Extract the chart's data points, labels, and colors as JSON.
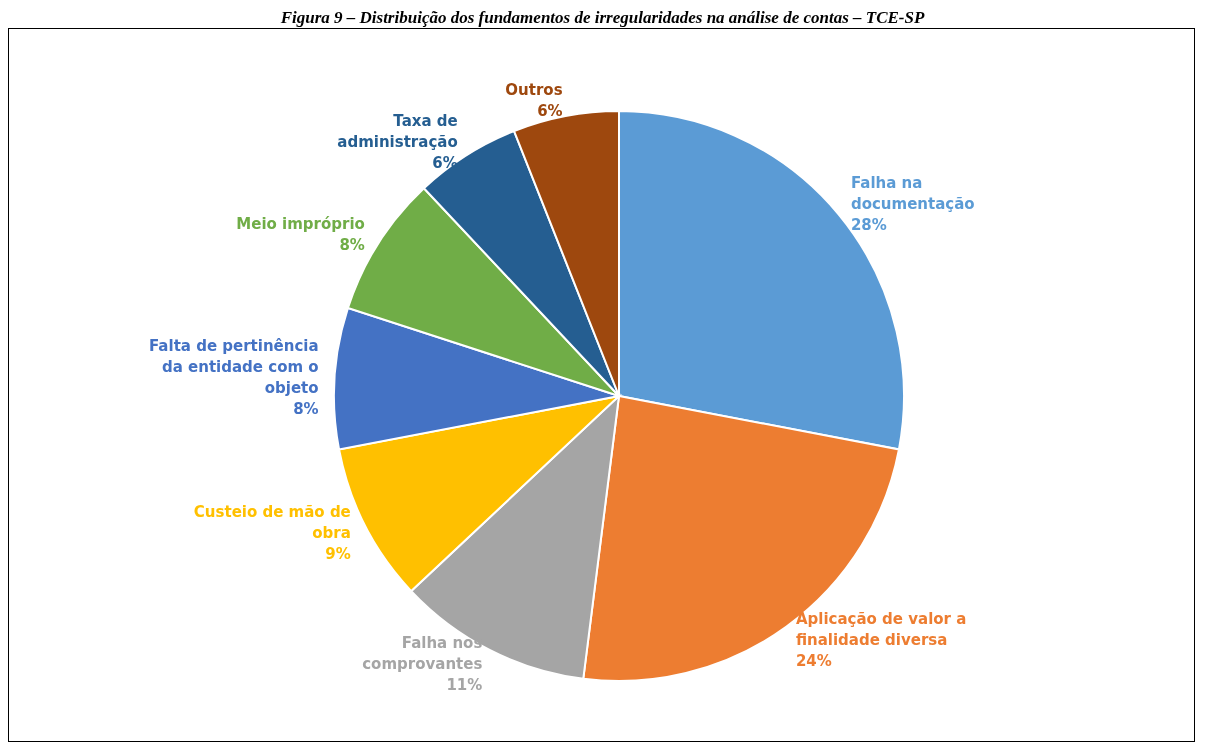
{
  "chart_data": {
    "type": "pie",
    "title": "Figura 9 – Distribuição dos fundamentos de irregularidades na análise de contas – TCE-SP",
    "categories": [
      "Falha na documentação",
      "Aplicação de valor a finalidade diversa",
      "Falha nos comprovantes",
      "Custeio de mão de obra",
      "Falta de pertinência da entidade com o objeto",
      "Meio impróprio",
      "Taxa de administração",
      "Outros"
    ],
    "values": [
      28,
      24,
      11,
      9,
      8,
      8,
      6,
      6
    ],
    "colors": [
      "#5b9bd5",
      "#ed7d31",
      "#a5a5a5",
      "#ffc000",
      "#4472c4",
      "#70ad47",
      "#255e91",
      "#9e480e"
    ],
    "value_labels": [
      "28%",
      "24%",
      "11%",
      "9%",
      "8%",
      "8%",
      "6%",
      "6%"
    ]
  }
}
